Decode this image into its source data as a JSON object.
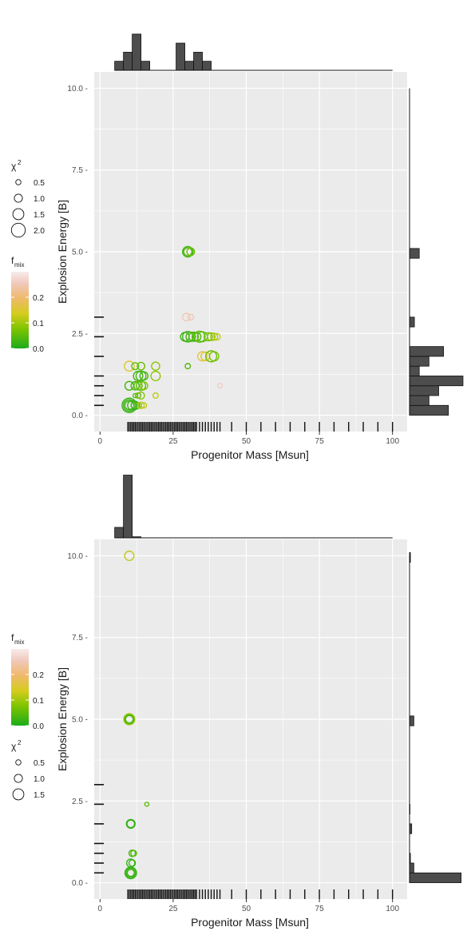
{
  "colors": {
    "panel_bg": "#ebebeb",
    "grid_major": "#ffffff",
    "hist_fill": "#4d4d4d",
    "tick_text": "#4d4d4d",
    "axis_title": "#1a1a1a",
    "fmix_scale": [
      "#1bab1b",
      "#7cc400",
      "#d4cc1c",
      "#efb96a",
      "#f1c9bc",
      "#f7ecec"
    ]
  },
  "chart_data": [
    {
      "type": "scatter",
      "xlabel": "Progenitor Mass [Msun]",
      "ylabel": "Explosion Energy [B]",
      "xlim": [
        -2,
        105
      ],
      "ylim": [
        -0.5,
        10.5
      ],
      "xticks": [
        0,
        25,
        50,
        75,
        100
      ],
      "yticks": [
        0.0,
        2.5,
        5.0,
        7.5,
        10.0
      ],
      "xtick_labels": [
        "0",
        "25",
        "50",
        "75",
        "100"
      ],
      "ytick_labels": [
        "0.0",
        "2.5",
        "5.0",
        "7.5",
        "10.0"
      ],
      "grid": true,
      "legend_position": "left",
      "legend_order": [
        "chi2",
        "fmix"
      ],
      "legend_chi2": {
        "title": "χ",
        "superscript": "2",
        "labels": [
          "0.5",
          "1.0",
          "1.5",
          "2.0"
        ],
        "values": [
          0.5,
          1.0,
          1.5,
          2.0
        ]
      },
      "legend_fmix": {
        "title": "f",
        "subscript": "mix",
        "labels": [
          "0.2",
          "0.1",
          "0.0"
        ],
        "values": [
          0.2,
          0.1,
          0.0
        ],
        "range": [
          0,
          0.3
        ]
      },
      "rug_x": [
        9.5,
        10,
        10.5,
        11,
        11.5,
        12,
        12.5,
        13,
        13.5,
        14,
        14.5,
        15,
        15.5,
        16,
        16.5,
        17,
        17.5,
        18,
        18.5,
        19,
        19.5,
        20,
        20.5,
        21,
        21.5,
        22,
        22.5,
        23,
        23.5,
        24,
        24.5,
        25,
        25.5,
        26,
        26.5,
        27,
        27.5,
        28,
        28.5,
        29,
        29.5,
        30,
        30.5,
        31,
        31.5,
        32,
        32.5,
        33,
        34,
        35,
        36,
        37,
        38,
        39,
        40,
        41,
        45,
        50,
        55,
        60,
        65,
        70,
        75,
        80,
        85,
        90,
        95,
        100
      ],
      "rug_y": [
        0.3,
        0.6,
        0.9,
        1.2,
        1.8,
        2.4,
        3.0
      ],
      "x_hist": {
        "edges": [
          5,
          8,
          11,
          14,
          17,
          20,
          23,
          26,
          29,
          32,
          35,
          38,
          41
        ],
        "counts": [
          1,
          2,
          4,
          1,
          0,
          0,
          0,
          3,
          1,
          2,
          1,
          0
        ],
        "max": 7.5,
        "xmax": 100
      },
      "y_hist": {
        "edges": [
          0,
          0.3,
          0.6,
          0.9,
          1.2,
          1.5,
          1.8,
          2.1,
          2.4,
          2.7,
          3.0,
          3.3,
          4.8,
          5.1
        ],
        "counts": [
          8,
          4,
          6,
          11,
          2,
          4,
          7,
          0,
          0,
          1,
          0,
          0,
          2
        ],
        "max": 11.5
      },
      "points": [
        {
          "x": 10.0,
          "y": 0.3,
          "chi2": 2.1,
          "fmix": 0.02
        },
        {
          "x": 10.0,
          "y": 0.3,
          "chi2": 1.6,
          "fmix": 0.02
        },
        {
          "x": 10.0,
          "y": 0.3,
          "chi2": 1.1,
          "fmix": 0.03
        },
        {
          "x": 11.0,
          "y": 0.3,
          "chi2": 1.2,
          "fmix": 0.02
        },
        {
          "x": 12.0,
          "y": 0.3,
          "chi2": 1.0,
          "fmix": 0.02
        },
        {
          "x": 13.0,
          "y": 0.3,
          "chi2": 0.6,
          "fmix": 0.05
        },
        {
          "x": 14.0,
          "y": 0.3,
          "chi2": 0.7,
          "fmix": 0.12
        },
        {
          "x": 15.0,
          "y": 0.3,
          "chi2": 0.5,
          "fmix": 0.12
        },
        {
          "x": 12.0,
          "y": 0.6,
          "chi2": 0.3,
          "fmix": 0.05
        },
        {
          "x": 13.0,
          "y": 0.6,
          "chi2": 0.5,
          "fmix": 0.05
        },
        {
          "x": 14.0,
          "y": 0.6,
          "chi2": 0.8,
          "fmix": 0.08
        },
        {
          "x": 19.0,
          "y": 0.6,
          "chi2": 0.5,
          "fmix": 0.12
        },
        {
          "x": 10.0,
          "y": 0.9,
          "chi2": 1.1,
          "fmix": 0.03
        },
        {
          "x": 12.0,
          "y": 0.9,
          "chi2": 1.0,
          "fmix": 0.03
        },
        {
          "x": 13.0,
          "y": 0.9,
          "chi2": 1.0,
          "fmix": 0.05
        },
        {
          "x": 14.0,
          "y": 0.9,
          "chi2": 1.2,
          "fmix": 0.05
        },
        {
          "x": 15.0,
          "y": 0.9,
          "chi2": 0.9,
          "fmix": 0.08
        },
        {
          "x": 41.0,
          "y": 0.9,
          "chi2": 0.4,
          "fmix": 0.26
        },
        {
          "x": 13.0,
          "y": 1.2,
          "chi2": 1.2,
          "fmix": 0.03
        },
        {
          "x": 14.0,
          "y": 1.2,
          "chi2": 1.3,
          "fmix": 0.03
        },
        {
          "x": 15.0,
          "y": 1.2,
          "chi2": 1.0,
          "fmix": 0.03
        },
        {
          "x": 19.0,
          "y": 1.2,
          "chi2": 1.2,
          "fmix": 0.09
        },
        {
          "x": 10.0,
          "y": 1.5,
          "chi2": 1.3,
          "fmix": 0.15
        },
        {
          "x": 12.0,
          "y": 1.5,
          "chi2": 0.8,
          "fmix": 0.05
        },
        {
          "x": 14.0,
          "y": 1.5,
          "chi2": 0.9,
          "fmix": 0.06
        },
        {
          "x": 19.0,
          "y": 1.5,
          "chi2": 1.0,
          "fmix": 0.09
        },
        {
          "x": 30.0,
          "y": 1.5,
          "chi2": 0.5,
          "fmix": 0.04
        },
        {
          "x": 35.0,
          "y": 1.8,
          "chi2": 1.2,
          "fmix": 0.18
        },
        {
          "x": 36.0,
          "y": 1.8,
          "chi2": 1.1,
          "fmix": 0.14
        },
        {
          "x": 38.0,
          "y": 1.8,
          "chi2": 1.5,
          "fmix": 0.06
        },
        {
          "x": 39.0,
          "y": 1.8,
          "chi2": 1.2,
          "fmix": 0.07
        },
        {
          "x": 29.0,
          "y": 2.4,
          "chi2": 1.1,
          "fmix": 0.03
        },
        {
          "x": 30.0,
          "y": 2.4,
          "chi2": 1.4,
          "fmix": 0.02
        },
        {
          "x": 31.0,
          "y": 2.4,
          "chi2": 1.2,
          "fmix": 0.03
        },
        {
          "x": 32.0,
          "y": 2.4,
          "chi2": 1.2,
          "fmix": 0.04
        },
        {
          "x": 33.0,
          "y": 2.4,
          "chi2": 1.1,
          "fmix": 0.04
        },
        {
          "x": 34.0,
          "y": 2.4,
          "chi2": 1.5,
          "fmix": 0.05
        },
        {
          "x": 35.0,
          "y": 2.4,
          "chi2": 1.3,
          "fmix": 0.05
        },
        {
          "x": 37.0,
          "y": 2.4,
          "chi2": 1.0,
          "fmix": 0.06
        },
        {
          "x": 38.0,
          "y": 2.4,
          "chi2": 0.9,
          "fmix": 0.08
        },
        {
          "x": 39.0,
          "y": 2.4,
          "chi2": 0.8,
          "fmix": 0.1
        },
        {
          "x": 40.0,
          "y": 2.4,
          "chi2": 0.7,
          "fmix": 0.12
        },
        {
          "x": 29.5,
          "y": 3.0,
          "chi2": 0.9,
          "fmix": 0.25
        },
        {
          "x": 31.0,
          "y": 3.0,
          "chi2": 0.6,
          "fmix": 0.25
        },
        {
          "x": 30.0,
          "y": 5.0,
          "chi2": 1.4,
          "fmix": 0.03
        },
        {
          "x": 30.0,
          "y": 5.0,
          "chi2": 1.0,
          "fmix": 0.04
        },
        {
          "x": 31.0,
          "y": 5.0,
          "chi2": 0.9,
          "fmix": 0.06
        }
      ]
    },
    {
      "type": "scatter",
      "xlabel": "Progenitor Mass [Msun]",
      "ylabel": "Explosion Energy [B]",
      "xlim": [
        -2,
        105
      ],
      "ylim": [
        -0.5,
        10.5
      ],
      "xticks": [
        0,
        25,
        50,
        75,
        100
      ],
      "yticks": [
        0.0,
        2.5,
        5.0,
        7.5,
        10.0
      ],
      "xtick_labels": [
        "0",
        "25",
        "50",
        "75",
        "100"
      ],
      "ytick_labels": [
        "0.0",
        "2.5",
        "5.0",
        "7.5",
        "10.0"
      ],
      "grid": true,
      "legend_position": "left",
      "legend_order": [
        "fmix",
        "chi2"
      ],
      "legend_chi2": {
        "title": "χ",
        "superscript": "2",
        "labels": [
          "0.5",
          "1.0",
          "1.5"
        ],
        "values": [
          0.5,
          1.0,
          1.5
        ]
      },
      "legend_fmix": {
        "title": "f",
        "subscript": "mix",
        "labels": [
          "0.2",
          "0.1",
          "0.0"
        ],
        "values": [
          0.2,
          0.1,
          0.0
        ],
        "range": [
          0,
          0.3
        ]
      },
      "rug_x": [
        9.5,
        10,
        10.5,
        11,
        11.5,
        12,
        12.5,
        13,
        13.5,
        14,
        14.5,
        15,
        15.5,
        16,
        16.5,
        17,
        17.5,
        18,
        18.5,
        19,
        19.5,
        20,
        20.5,
        21,
        21.5,
        22,
        22.5,
        23,
        23.5,
        24,
        24.5,
        25,
        25.5,
        26,
        26.5,
        27,
        27.5,
        28,
        28.5,
        29,
        29.5,
        30,
        30.5,
        31,
        31.5,
        32,
        32.5,
        33,
        34,
        35,
        36,
        37,
        38,
        39,
        40,
        41,
        45,
        50,
        55,
        60,
        65,
        70,
        75,
        80,
        85,
        90,
        95,
        100
      ],
      "rug_y": [
        0.3,
        0.6,
        0.9,
        1.2,
        1.8,
        2.4,
        3.0
      ],
      "x_hist": {
        "edges": [
          5,
          8,
          11,
          14,
          17,
          20
        ],
        "counts": [
          1,
          6,
          0.1,
          0,
          0
        ],
        "max": 6.5,
        "xmax": 100
      },
      "y_hist": {
        "edges": [
          0,
          0.3,
          0.6,
          0.9,
          1.2,
          1.5,
          1.8,
          2.1,
          2.4,
          4.8,
          5.1,
          9.8,
          10.1
        ],
        "counts": [
          12,
          1,
          0.2,
          0,
          0,
          0.5,
          0,
          0.1,
          0,
          1,
          0,
          0.2
        ],
        "max": 13
      },
      "points": [
        {
          "x": 10.5,
          "y": 0.3,
          "chi2": 1.6,
          "fmix": 0.02
        },
        {
          "x": 10.5,
          "y": 0.3,
          "chi2": 1.2,
          "fmix": 0.02
        },
        {
          "x": 10.5,
          "y": 0.3,
          "chi2": 0.8,
          "fmix": 0.03
        },
        {
          "x": 10.5,
          "y": 0.6,
          "chi2": 1.0,
          "fmix": 0.02
        },
        {
          "x": 11.0,
          "y": 0.6,
          "chi2": 0.7,
          "fmix": 0.02
        },
        {
          "x": 11.0,
          "y": 0.9,
          "chi2": 0.7,
          "fmix": 0.03
        },
        {
          "x": 11.5,
          "y": 0.9,
          "chi2": 0.6,
          "fmix": 0.05
        },
        {
          "x": 10.5,
          "y": 1.8,
          "chi2": 1.1,
          "fmix": 0.02
        },
        {
          "x": 10.5,
          "y": 1.8,
          "chi2": 0.9,
          "fmix": 0.02
        },
        {
          "x": 16.0,
          "y": 2.4,
          "chi2": 0.3,
          "fmix": 0.05
        },
        {
          "x": 10.0,
          "y": 5.0,
          "chi2": 1.5,
          "fmix": 0.1
        },
        {
          "x": 10.0,
          "y": 5.0,
          "chi2": 1.2,
          "fmix": 0.06
        },
        {
          "x": 10.0,
          "y": 5.0,
          "chi2": 0.9,
          "fmix": 0.03
        },
        {
          "x": 10.0,
          "y": 10.0,
          "chi2": 1.2,
          "fmix": 0.12
        }
      ]
    }
  ]
}
